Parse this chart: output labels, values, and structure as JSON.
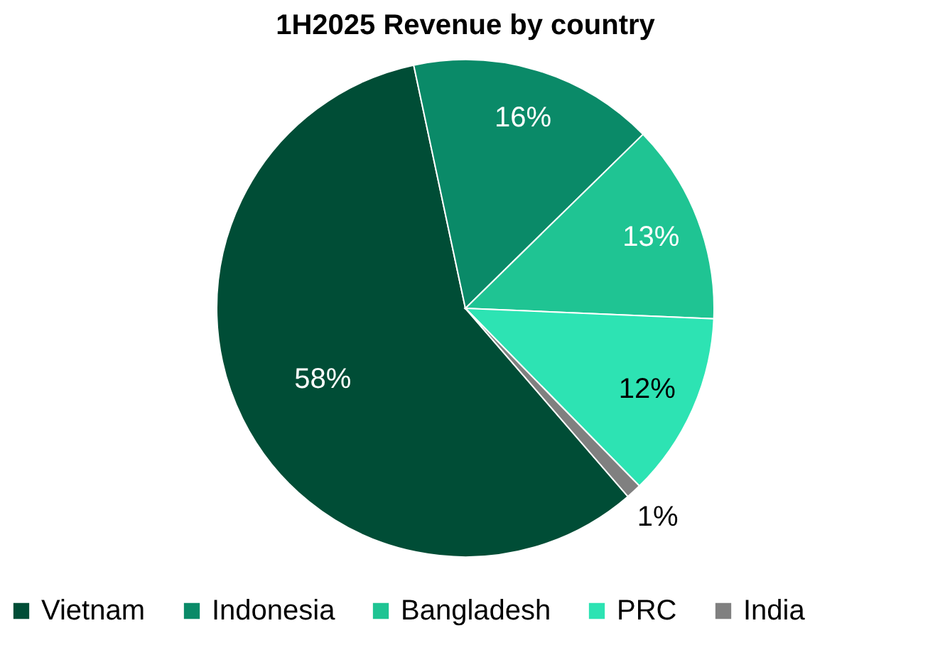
{
  "chart_data": {
    "type": "pie",
    "title": "1H2025 Revenue by country",
    "categories": [
      "Vietnam",
      "Indonesia",
      "Bangladesh",
      "PRC",
      "India"
    ],
    "values": [
      58,
      16,
      13,
      12,
      1
    ],
    "colors": [
      "#004d36",
      "#0a8a68",
      "#1fc493",
      "#2de3b3",
      "#808080"
    ],
    "value_labels": [
      "58%",
      "16%",
      "13%",
      "12%",
      "1%"
    ],
    "legend": "bottom"
  }
}
